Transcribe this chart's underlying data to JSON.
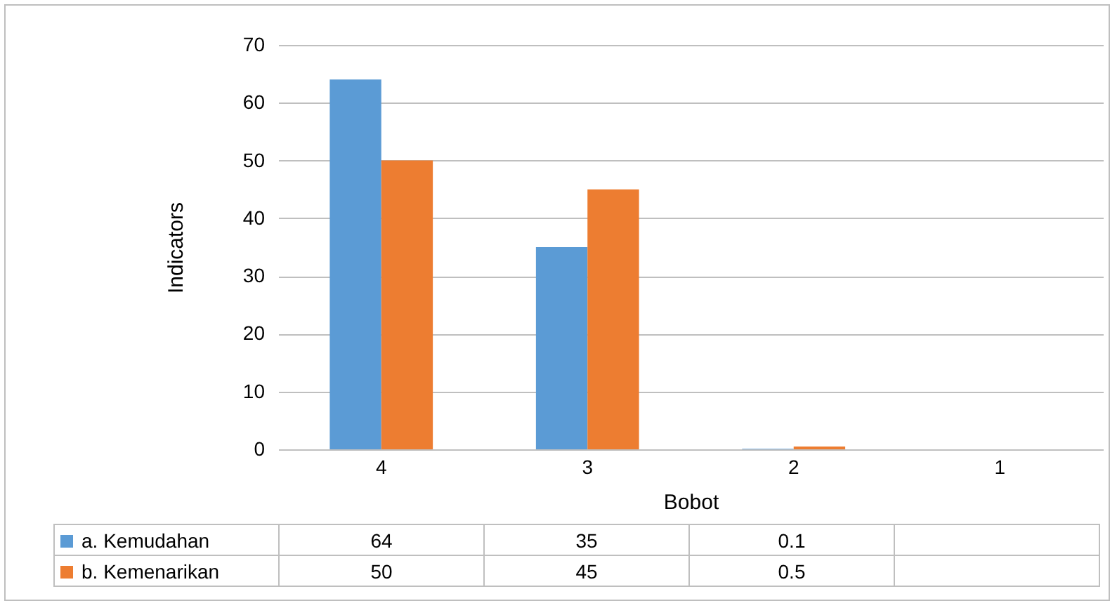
{
  "chart_data": {
    "type": "bar",
    "xlabel": "Bobot",
    "ylabel": "Indicators",
    "categories": [
      "4",
      "3",
      "2",
      "1"
    ],
    "series": [
      {
        "name": "a. Kemudahan",
        "color": "#5b9bd5",
        "values": [
          64,
          35,
          0.1,
          null
        ]
      },
      {
        "name": "b. Kemenarikan",
        "color": "#ed7d31",
        "values": [
          50,
          45,
          0.5,
          null
        ]
      }
    ],
    "ylim": [
      0,
      70
    ],
    "yticks": [
      0,
      10,
      20,
      30,
      40,
      50,
      60,
      70
    ],
    "grid": "y",
    "data_labels": true,
    "legend": "bottom"
  }
}
